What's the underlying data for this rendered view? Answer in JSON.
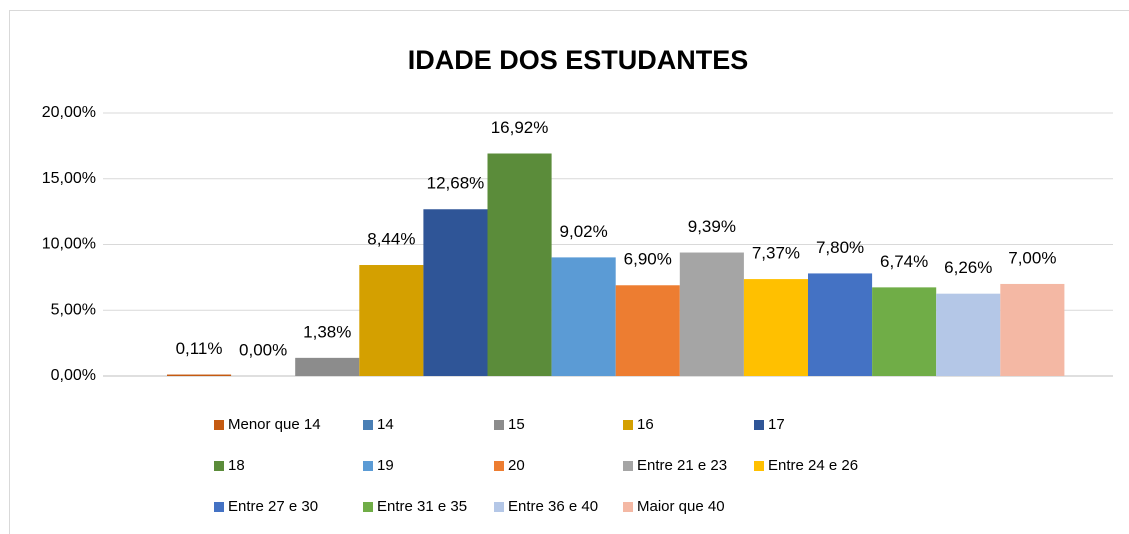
{
  "chart_data": {
    "type": "bar",
    "title": "IDADE DOS ESTUDANTES",
    "series": [
      {
        "name": "Menor que 14",
        "color": "#c55a11",
        "values": [
          0.11
        ],
        "value_labels": [
          "0,11%"
        ]
      },
      {
        "name": "14",
        "color": "#4a7fb5",
        "values": [
          0.0
        ],
        "value_labels": [
          "0,00%"
        ]
      },
      {
        "name": "15",
        "color": "#8c8c8c",
        "values": [
          1.38
        ],
        "value_labels": [
          "1,38%"
        ]
      },
      {
        "name": "16",
        "color": "#d4a000",
        "values": [
          8.44
        ],
        "value_labels": [
          "8,44%"
        ]
      },
      {
        "name": "17",
        "color": "#2f5597",
        "values": [
          12.68
        ],
        "value_labels": [
          "12,68%"
        ]
      },
      {
        "name": "18",
        "color": "#5b8c3a",
        "values": [
          16.92
        ],
        "value_labels": [
          "16,92%"
        ]
      },
      {
        "name": "19",
        "color": "#5b9bd5",
        "values": [
          9.02
        ],
        "value_labels": [
          "9,02%"
        ]
      },
      {
        "name": "20",
        "color": "#ed7d31",
        "values": [
          6.9
        ],
        "value_labels": [
          "6,90%"
        ]
      },
      {
        "name": "Entre 21 e 23",
        "color": "#a5a5a5",
        "values": [
          9.39
        ],
        "value_labels": [
          "9,39%"
        ]
      },
      {
        "name": "Entre 24 e 26",
        "color": "#ffc000",
        "values": [
          7.37
        ],
        "value_labels": [
          "7,37%"
        ]
      },
      {
        "name": "Entre 27 e 30",
        "color": "#4472c4",
        "values": [
          7.8
        ],
        "value_labels": [
          "7,80%"
        ]
      },
      {
        "name": "Entre 31 e 35",
        "color": "#70ad47",
        "values": [
          6.74
        ],
        "value_labels": [
          "6,74%"
        ]
      },
      {
        "name": "Entre 36 e 40",
        "color": "#b4c7e7",
        "values": [
          6.26
        ],
        "value_labels": [
          "6,26%"
        ]
      },
      {
        "name": "Maior que 40",
        "color": "#f4b8a4",
        "values": [
          7.0
        ],
        "value_labels": [
          "7,00%"
        ]
      }
    ],
    "ylim": [
      0,
      20
    ],
    "yticks": [
      {
        "value": 0,
        "label": "0,00%"
      },
      {
        "value": 5,
        "label": "5,00%"
      },
      {
        "value": 10,
        "label": "10,00%"
      },
      {
        "value": 15,
        "label": "15,00%"
      },
      {
        "value": 20,
        "label": "20,00%"
      }
    ],
    "grid": true,
    "legend": "bottom"
  }
}
